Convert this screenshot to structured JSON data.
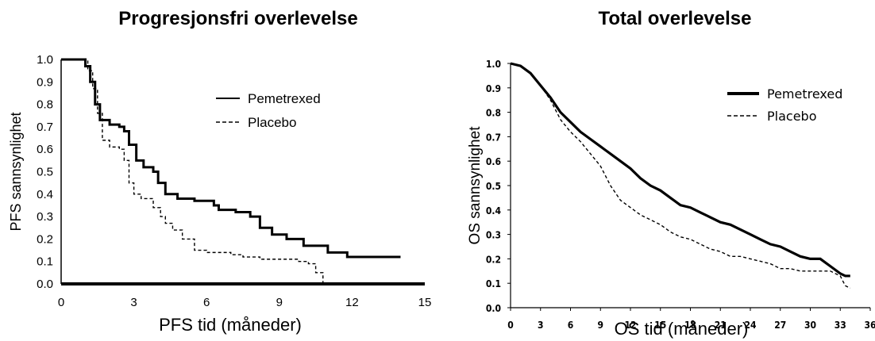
{
  "chart_data": [
    {
      "type": "line",
      "title": "Progresjonsfri overlevelse",
      "xlabel": "PFS tid (måneder)",
      "ylabel": "PFS sannsynlighet",
      "xlim": [
        0,
        15
      ],
      "ylim": [
        0,
        1
      ],
      "xticks": [
        "0",
        "3",
        "6",
        "9",
        "12",
        "15"
      ],
      "yticks": [
        "0.0",
        "0.1",
        "0.2",
        "0.3",
        "0.4",
        "0.5",
        "0.6",
        "0.7",
        "0.8",
        "0.9",
        "1.0"
      ],
      "legend_position": "top-right",
      "series": [
        {
          "name": "Pemetrexed",
          "style": "solid-thick",
          "points": [
            [
              0,
              1.0
            ],
            [
              0.8,
              1.0
            ],
            [
              1.0,
              0.97
            ],
            [
              1.2,
              0.9
            ],
            [
              1.4,
              0.8
            ],
            [
              1.6,
              0.73
            ],
            [
              2.0,
              0.71
            ],
            [
              2.4,
              0.7
            ],
            [
              2.6,
              0.68
            ],
            [
              2.8,
              0.62
            ],
            [
              3.1,
              0.55
            ],
            [
              3.4,
              0.52
            ],
            [
              3.8,
              0.5
            ],
            [
              4.0,
              0.45
            ],
            [
              4.3,
              0.4
            ],
            [
              4.8,
              0.38
            ],
            [
              5.5,
              0.37
            ],
            [
              6.3,
              0.35
            ],
            [
              6.5,
              0.33
            ],
            [
              7.2,
              0.32
            ],
            [
              7.8,
              0.3
            ],
            [
              8.2,
              0.25
            ],
            [
              8.7,
              0.22
            ],
            [
              9.3,
              0.2
            ],
            [
              10.0,
              0.17
            ],
            [
              11.0,
              0.14
            ],
            [
              11.8,
              0.12
            ],
            [
              14.0,
              0.12
            ]
          ]
        },
        {
          "name": "Placebo",
          "style": "dashed",
          "points": [
            [
              0,
              1.0
            ],
            [
              0.9,
              1.0
            ],
            [
              1.1,
              0.95
            ],
            [
              1.3,
              0.87
            ],
            [
              1.5,
              0.76
            ],
            [
              1.7,
              0.64
            ],
            [
              2.0,
              0.61
            ],
            [
              2.4,
              0.6
            ],
            [
              2.6,
              0.55
            ],
            [
              2.8,
              0.45
            ],
            [
              3.0,
              0.4
            ],
            [
              3.3,
              0.38
            ],
            [
              3.8,
              0.34
            ],
            [
              4.1,
              0.3
            ],
            [
              4.3,
              0.27
            ],
            [
              4.6,
              0.24
            ],
            [
              5.0,
              0.2
            ],
            [
              5.5,
              0.15
            ],
            [
              6.0,
              0.14
            ],
            [
              7.0,
              0.13
            ],
            [
              7.5,
              0.12
            ],
            [
              8.2,
              0.11
            ],
            [
              9.8,
              0.1
            ],
            [
              10.2,
              0.09
            ],
            [
              10.5,
              0.05
            ],
            [
              10.8,
              0.0
            ]
          ]
        }
      ]
    },
    {
      "type": "line",
      "title": "Total overlevelse",
      "xlabel": "OS tid (måneder)",
      "ylabel": "OS sannsynlighet",
      "xlim": [
        0,
        36
      ],
      "ylim": [
        0,
        1
      ],
      "xticks": [
        "0",
        "3",
        "6",
        "9",
        "12",
        "15",
        "18",
        "21",
        "24",
        "27",
        "30",
        "33",
        "36"
      ],
      "yticks": [
        "0.0",
        "0.1",
        "0.2",
        "0.3",
        "0.4",
        "0.5",
        "0.6",
        "0.7",
        "0.8",
        "0.9",
        "1.0"
      ],
      "legend_position": "top-right",
      "series": [
        {
          "name": "Pemetrexed",
          "style": "solid-thick",
          "points": [
            [
              0,
              1.0
            ],
            [
              1,
              0.99
            ],
            [
              2,
              0.96
            ],
            [
              3,
              0.91
            ],
            [
              4,
              0.86
            ],
            [
              5,
              0.8
            ],
            [
              6,
              0.76
            ],
            [
              7,
              0.72
            ],
            [
              8,
              0.69
            ],
            [
              9,
              0.66
            ],
            [
              10,
              0.63
            ],
            [
              11,
              0.6
            ],
            [
              12,
              0.57
            ],
            [
              13,
              0.53
            ],
            [
              14,
              0.5
            ],
            [
              15,
              0.48
            ],
            [
              16,
              0.45
            ],
            [
              17,
              0.42
            ],
            [
              18,
              0.41
            ],
            [
              19,
              0.39
            ],
            [
              20,
              0.37
            ],
            [
              21,
              0.35
            ],
            [
              22,
              0.34
            ],
            [
              23,
              0.32
            ],
            [
              24,
              0.3
            ],
            [
              25,
              0.28
            ],
            [
              26,
              0.26
            ],
            [
              27,
              0.25
            ],
            [
              28,
              0.23
            ],
            [
              29,
              0.21
            ],
            [
              30,
              0.2
            ],
            [
              31,
              0.2
            ],
            [
              32,
              0.17
            ],
            [
              33,
              0.14
            ],
            [
              33.5,
              0.13
            ],
            [
              34,
              0.13
            ]
          ]
        },
        {
          "name": "Placebo",
          "style": "dashed",
          "points": [
            [
              0,
              1.0
            ],
            [
              1,
              0.99
            ],
            [
              2,
              0.96
            ],
            [
              3,
              0.91
            ],
            [
              4,
              0.85
            ],
            [
              5,
              0.77
            ],
            [
              6,
              0.72
            ],
            [
              7,
              0.68
            ],
            [
              8,
              0.63
            ],
            [
              9,
              0.58
            ],
            [
              10,
              0.5
            ],
            [
              11,
              0.44
            ],
            [
              12,
              0.41
            ],
            [
              13,
              0.38
            ],
            [
              14,
              0.36
            ],
            [
              15,
              0.34
            ],
            [
              16,
              0.31
            ],
            [
              17,
              0.29
            ],
            [
              18,
              0.28
            ],
            [
              19,
              0.26
            ],
            [
              20,
              0.24
            ],
            [
              21,
              0.23
            ],
            [
              22,
              0.21
            ],
            [
              23,
              0.21
            ],
            [
              24,
              0.2
            ],
            [
              25,
              0.19
            ],
            [
              26,
              0.18
            ],
            [
              27,
              0.16
            ],
            [
              28,
              0.16
            ],
            [
              29,
              0.15
            ],
            [
              30,
              0.15
            ],
            [
              31,
              0.15
            ],
            [
              32,
              0.15
            ],
            [
              33,
              0.13
            ],
            [
              33.5,
              0.09
            ],
            [
              34,
              0.08
            ]
          ]
        }
      ]
    }
  ]
}
